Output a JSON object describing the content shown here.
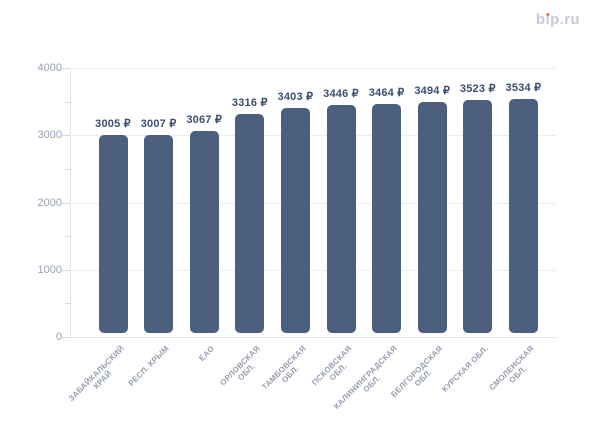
{
  "page": {
    "background": "#ffffff"
  },
  "logo": {
    "text": "bip.ru",
    "parts": {
      "p1": "b",
      "i": "ı",
      "p2": "p.ru"
    },
    "color": "#c7cbd8",
    "dot_color": "#f2664b"
  },
  "chart_data": {
    "type": "bar",
    "title": "",
    "categories": [
      "ЗАБАЙКАЛЬСКИЙ КРАЙ",
      "РЕСП. КРЫМ",
      "ЕАО",
      "ОРЛОВСКАЯ ОБЛ.",
      "ТАМБОВСКАЯ ОБЛ.",
      "ПСКОВСКАЯ ОБЛ.",
      "КАЛИНИНГРАДСКАЯ ОБЛ.",
      "БЕЛГОРОДСКАЯ ОБЛ.",
      "КУРСКАЯ ОБЛ.",
      "СМОЛЕНСКАЯ ОБЛ."
    ],
    "category_lines": [
      [
        "ЗАБАЙКАЛЬСКИЙ",
        "КРАЙ"
      ],
      [
        "РЕСП. КРЫМ"
      ],
      [
        "ЕАО"
      ],
      [
        "ОРЛОВСКАЯ",
        "ОБЛ."
      ],
      [
        "ТАМБОВСКАЯ",
        "ОБЛ."
      ],
      [
        "ПСКОВСКАЯ",
        "ОБЛ."
      ],
      [
        "КАЛИНИНГРАДСКАЯ",
        "ОБЛ."
      ],
      [
        "БЕЛГОРОДСКАЯ",
        "ОБЛ."
      ],
      [
        "КУРСКАЯ ОБЛ."
      ],
      [
        "СМОЛЕНСКАЯ",
        "ОБЛ."
      ]
    ],
    "values": [
      3005,
      3007,
      3067,
      3316,
      3403,
      3446,
      3464,
      3494,
      3523,
      3534
    ],
    "value_labels": [
      "3005 ₽",
      "3007 ₽",
      "3067 ₽",
      "3316 ₽",
      "3403 ₽",
      "3446 ₽",
      "3464 ₽",
      "3494 ₽",
      "3523 ₽",
      "3534 ₽"
    ],
    "currency": "₽",
    "xlabel": "",
    "ylabel": "",
    "ylim": [
      0,
      4000
    ],
    "y_ticks": [
      0,
      1000,
      2000,
      3000,
      4000
    ],
    "y_tick_labels": [
      "0",
      "1000",
      "2000",
      "3000",
      "4000"
    ],
    "y_minor_tick_step": 500,
    "grid": "horizontal dotted",
    "legend": "none",
    "colors": {
      "bar": "#4c5f7e",
      "value_label": "#3a4e70",
      "axis_line": "#e3e5ea",
      "grid_line": "#d9dce3",
      "y_tick_label": "#98a1b1",
      "x_tick_label": "#969eae"
    }
  }
}
